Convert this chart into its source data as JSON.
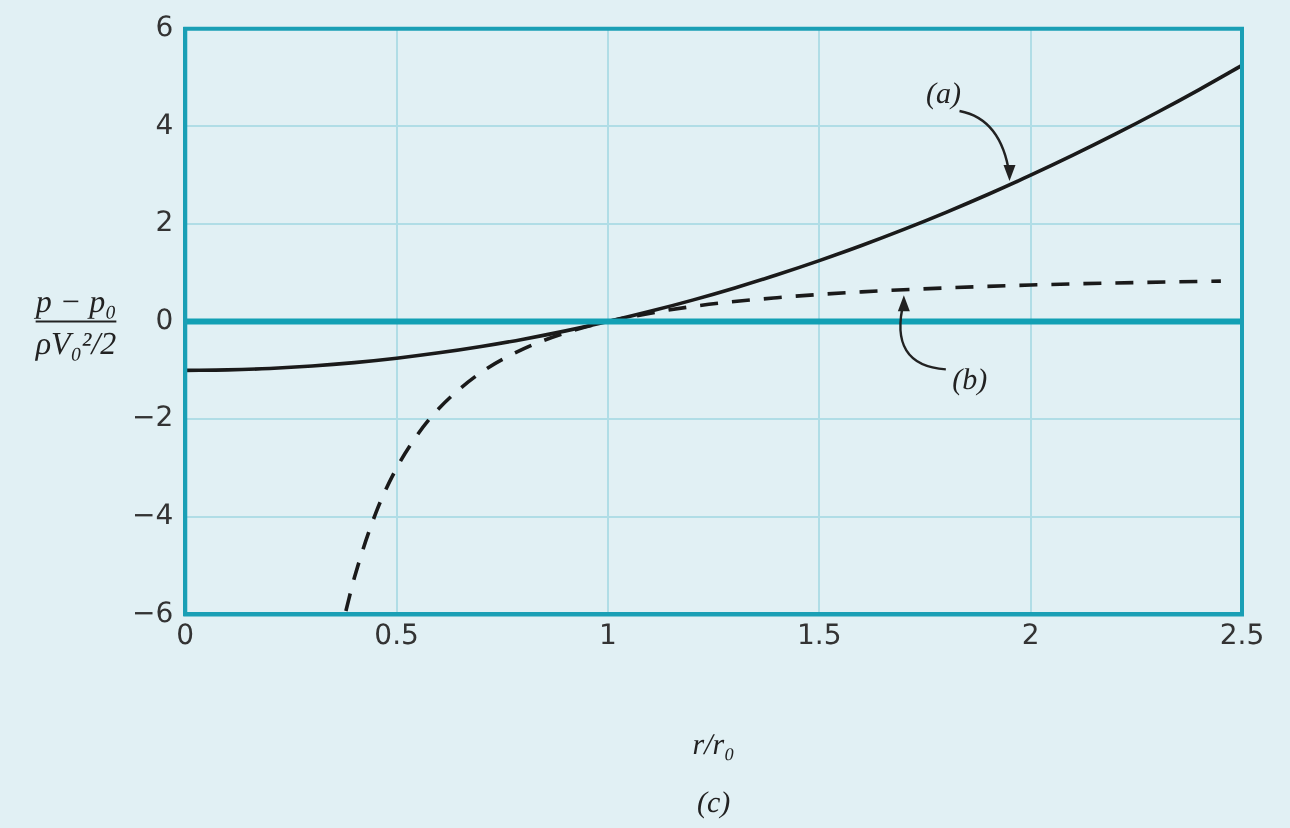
{
  "chart_data": {
    "type": "line",
    "xlabel": "r/r₀",
    "ylabel": "p − p₀\nρV₀²/2",
    "xlim": [
      0,
      2.5
    ],
    "xticks": [
      0,
      0.5,
      1,
      1.5,
      2,
      2.5
    ],
    "ylim": [
      -6,
      6
    ],
    "yticks": [
      -6,
      -4,
      -2,
      0,
      2,
      4,
      6
    ],
    "grid": true,
    "legend": false,
    "marker": "none",
    "series": [
      {
        "color": "#1a1a1a",
        "line_style": "solid",
        "x": [
          0,
          0.1,
          0.2,
          0.3,
          0.4,
          0.5,
          0.6,
          0.7,
          0.8,
          0.9,
          1,
          1.1,
          1.2,
          1.3,
          1.4,
          1.5,
          1.6,
          1.7,
          1.8,
          1.9,
          2,
          2.1,
          2.2,
          2.3,
          2.4,
          2.5
        ],
        "values": [
          -1,
          -0.99,
          -0.96,
          -0.91,
          -0.84,
          -0.75,
          -0.64,
          -0.51,
          -0.36,
          -0.19,
          0,
          0.21,
          0.44,
          0.69,
          0.96,
          1.25,
          1.56,
          1.89,
          2.24,
          2.61,
          3,
          3.41,
          3.84,
          4.29,
          4.76,
          5.25
        ]
      },
      {
        "color": "#1a1a1a",
        "line_style": "dashed",
        "x": [
          0.38,
          0.4,
          0.45,
          0.5,
          0.55,
          0.6,
          0.7,
          0.8,
          0.9,
          1,
          1.2,
          1.4,
          1.6,
          1.8,
          2,
          2.25,
          2.45
        ],
        "values": [
          -5.93,
          -5.25,
          -3.94,
          -3,
          -2.31,
          -1.78,
          -1.04,
          -0.56,
          -0.23,
          0,
          0.31,
          0.49,
          0.61,
          0.69,
          0.75,
          0.8,
          0.83
        ]
      }
    ],
    "ref_lines": [
      {
        "axis": "y",
        "value": 0,
        "color": "#12a0b4"
      }
    ],
    "annotations": [
      {
        "text": "(a)",
        "x": 1.95,
        "y": 2.8
      },
      {
        "text": "(b)",
        "x": 1.7,
        "y": 0.62
      },
      "(c)"
    ]
  }
}
